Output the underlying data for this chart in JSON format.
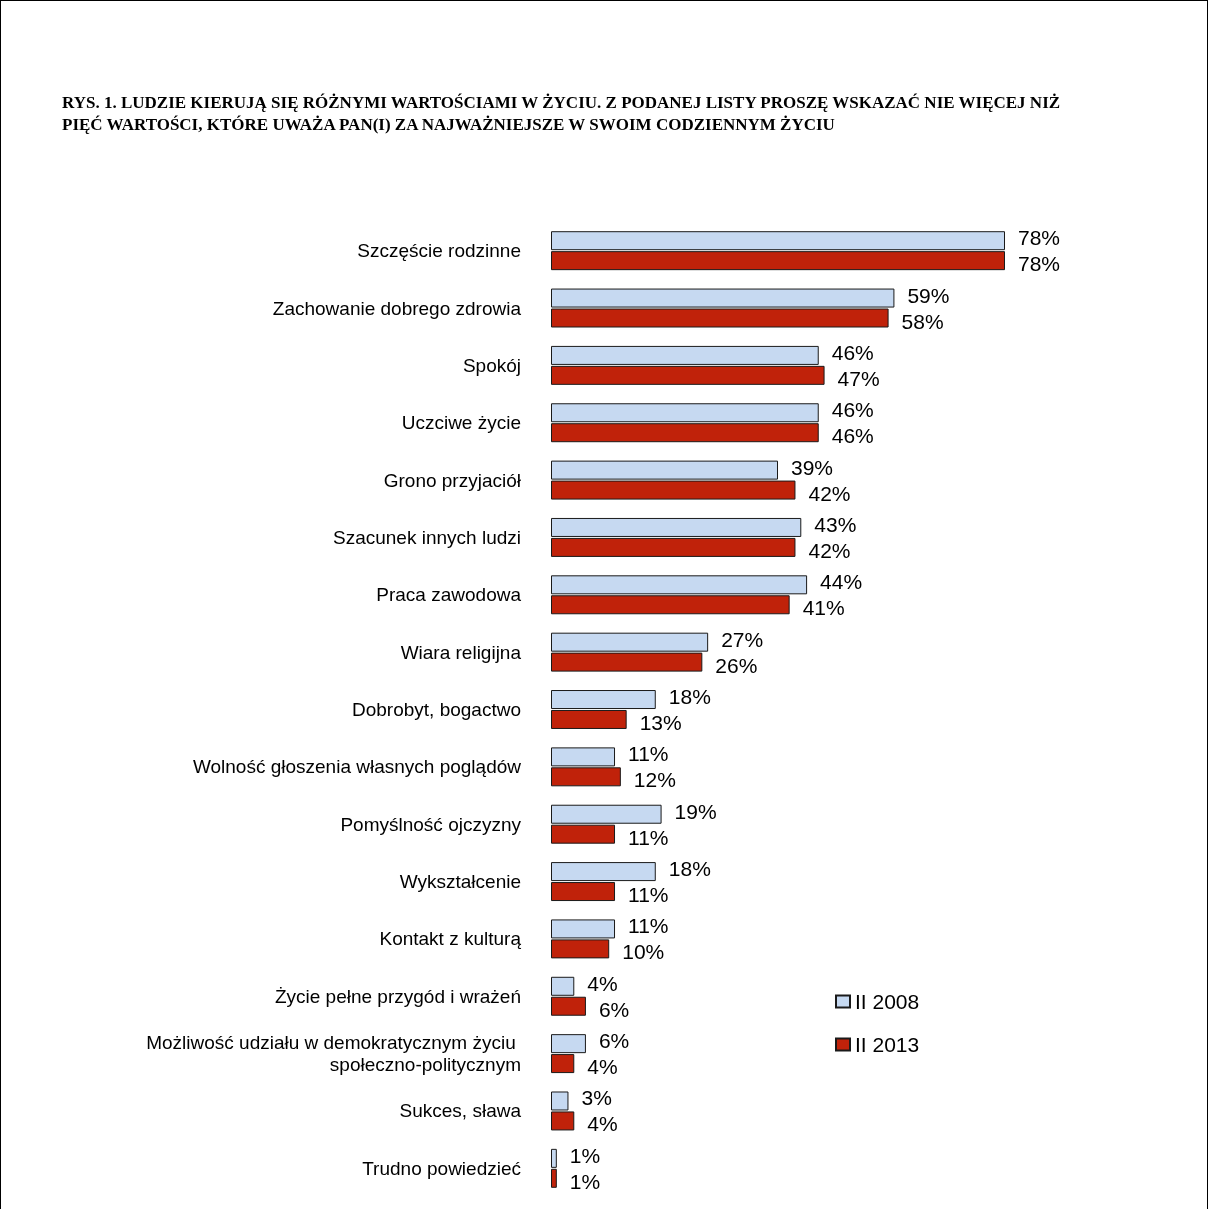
{
  "chart_data": {
    "type": "bar",
    "orientation": "horizontal",
    "title": "RYS. 1. LUDZIE KIERUJĄ SIĘ RÓŻNYMI WARTOŚCIAMI W ŻYCIU. Z PODANEJ LISTY PROSZĘ WSKAZAĆ NIE WIĘCEJ NIŻ PIĘĆ WARTOŚCI, KTÓRE UWAŻA PAN(I) ZA NAJWAŻNIEJSZE W SWOIM CODZIENNYM ŻYCIU",
    "categories": [
      "Szczęście rodzinne",
      "Zachowanie dobrego zdrowia",
      "Spokój",
      "Uczciwe życie",
      "Grono przyjaciół",
      "Szacunek innych ludzi",
      "Praca zawodowa",
      "Wiara religijna",
      "Dobrobyt, bogactwo",
      "Wolność głoszenia własnych poglądów",
      "Pomyślność ojczyzny",
      "Wykształcenie",
      "Kontakt z kulturą",
      "Życie pełne przygód i wrażeń",
      "Możliwość udziału w demokratycznym życiu społeczno-politycznym",
      "Sukces, sława",
      "Trudno powiedzieć"
    ],
    "series": [
      {
        "name": "II 2008",
        "color": "#c6d9f1",
        "values": [
          78,
          59,
          46,
          46,
          39,
          43,
          44,
          27,
          18,
          11,
          19,
          18,
          11,
          4,
          6,
          3,
          1
        ],
        "value_labels": [
          "78%",
          "59%",
          "46%",
          "46%",
          "39%",
          "43%",
          "44%",
          "27%",
          "18%",
          "11%",
          "19%",
          "18%",
          "11%",
          "4%",
          "6%",
          "3%",
          "1%"
        ]
      },
      {
        "name": "II 2013",
        "color": "#c0220a",
        "values": [
          78,
          58,
          47,
          46,
          42,
          42,
          41,
          26,
          13,
          12,
          11,
          11,
          10,
          6,
          4,
          4,
          1
        ],
        "value_labels": [
          "78%",
          "58%",
          "47%",
          "46%",
          "42%",
          "42%",
          "41%",
          "26%",
          "13%",
          "12%",
          "11%",
          "11%",
          "10%",
          "6%",
          "4%",
          "4%",
          "1%"
        ]
      }
    ],
    "legend": "bottom right"
  }
}
